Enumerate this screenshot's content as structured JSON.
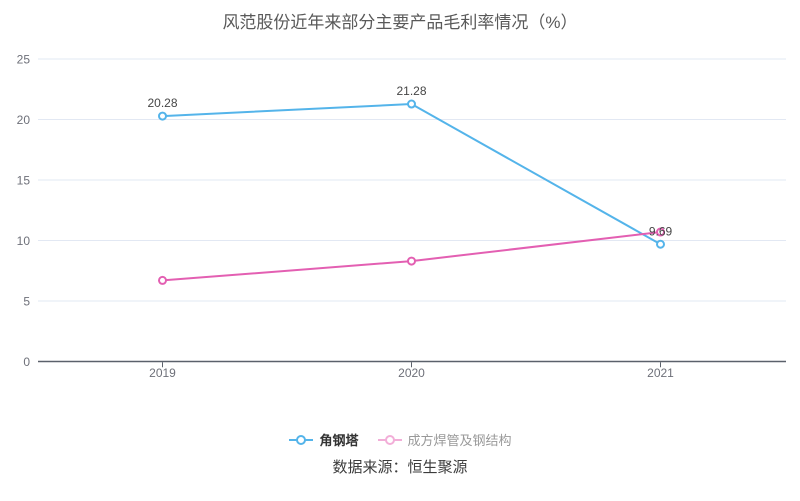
{
  "title": "风范股份近年来部分主要产品毛利率情况（%）",
  "source_label": "数据来源：恒生聚源",
  "chart_data": {
    "type": "line",
    "title": "风范股份近年来部分主要产品毛利率情况（%）",
    "categories": [
      "2019",
      "2020",
      "2021"
    ],
    "series": [
      {
        "name": "角钢塔",
        "values": [
          20.28,
          21.28,
          9.69
        ],
        "data_labels": [
          "20.28",
          "21.28",
          "9.69"
        ],
        "show_labels": true,
        "color": "#54b4ea",
        "legend_color": "#54b4ea",
        "legend_muted": false
      },
      {
        "name": "成方焊管及钢结构",
        "values": [
          6.7,
          8.3,
          10.7
        ],
        "show_labels": false,
        "color": "#e35fb2",
        "legend_color": "#f2aed8",
        "legend_muted": true
      }
    ],
    "ylim": [
      0,
      25
    ],
    "y_ticks": [
      0,
      5,
      10,
      15,
      20,
      25
    ],
    "grid": true,
    "legend_position": "bottom",
    "marker": "hollow-circle",
    "xlabel": "",
    "ylabel": ""
  },
  "style": {
    "background": "#ffffff",
    "grid_color": "#e2e8f3",
    "axis_color": "#5b616b",
    "tick_label_color": "#6e7079",
    "data_label_color": "#464646"
  }
}
